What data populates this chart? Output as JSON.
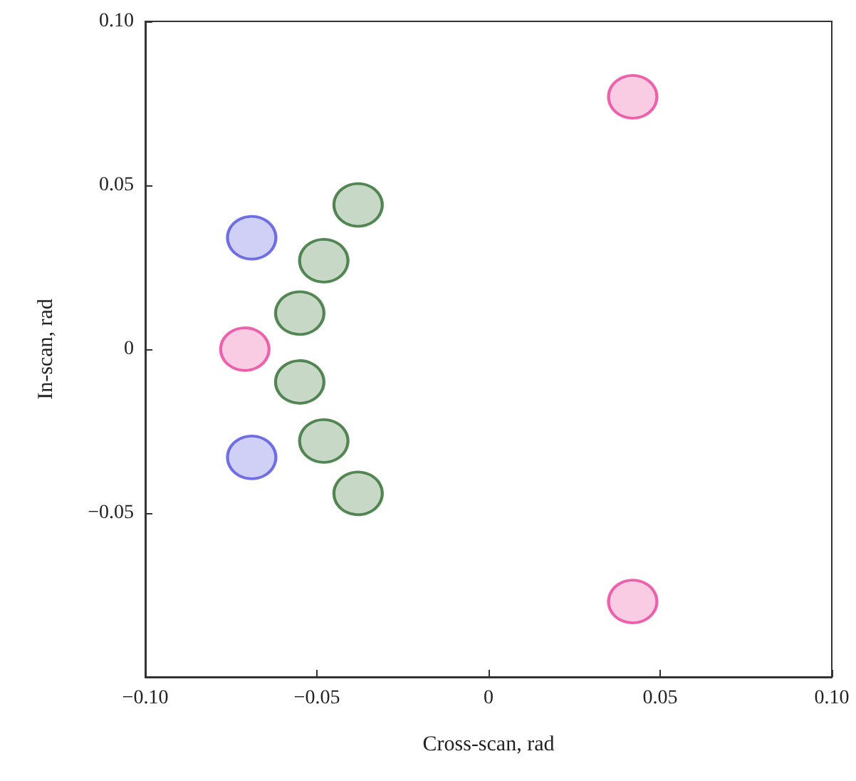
{
  "chart_data": {
    "type": "scatter",
    "xlabel": "Cross-scan, rad",
    "ylabel": "In-scan, rad",
    "xlim": [
      -0.1,
      0.1
    ],
    "ylim": [
      -0.1,
      0.1
    ],
    "xticks": [
      {
        "value": -0.1,
        "label": "−0.10"
      },
      {
        "value": -0.05,
        "label": "−0.05"
      },
      0,
      {
        "value": 0.05,
        "label": "0.05"
      },
      {
        "value": 0.1,
        "label": "0.10"
      }
    ],
    "yticks": [
      {
        "value": -0.05,
        "label": "−0.05"
      },
      0,
      {
        "value": 0.05,
        "label": "0.05"
      },
      {
        "value": 0.1,
        "label": "0.10"
      }
    ],
    "grid": false,
    "marker": "circle",
    "series": [
      {
        "color": "#e8409a",
        "x": [
          0.042,
          0.042,
          -0.071
        ],
        "values": [
          0.077,
          -0.077,
          0
        ]
      },
      {
        "color": "#5050e0",
        "x": [
          -0.069,
          -0.069
        ],
        "values": [
          0.034,
          -0.033
        ]
      },
      {
        "color": "#2e6b2e",
        "x": [
          -0.038,
          -0.048,
          -0.055,
          -0.055,
          -0.048,
          -0.038
        ],
        "values": [
          0.044,
          0.027,
          0.011,
          -0.01,
          -0.028,
          -0.044
        ]
      }
    ]
  }
}
